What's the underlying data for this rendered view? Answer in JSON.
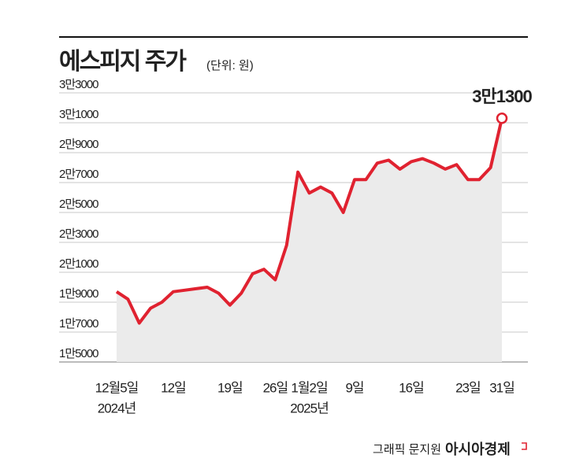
{
  "chart_data": {
    "type": "line",
    "title": "에스피지 주가",
    "subtitle": "(단위: 원)",
    "credit": "그래픽 문지원",
    "source": "아시아경제",
    "categories": [
      "12월5일",
      null,
      null,
      null,
      null,
      "12일",
      null,
      null,
      null,
      null,
      "19일",
      null,
      null,
      null,
      "26일",
      null,
      null,
      "1월2일",
      null,
      null,
      null,
      "9일",
      null,
      null,
      null,
      null,
      "16일",
      null,
      null,
      null,
      null,
      "23일",
      null,
      null,
      "31일"
    ],
    "year_labels": [
      "2024년",
      null,
      null,
      null,
      null,
      null,
      null,
      null,
      null,
      null,
      null,
      null,
      null,
      null,
      null,
      null,
      null,
      "2025년",
      null,
      null,
      null,
      null,
      null,
      null,
      null,
      null,
      null,
      null,
      null,
      null,
      null,
      null,
      null,
      null,
      null
    ],
    "series": [
      {
        "color": "#e02230",
        "fill": "#ebebeb",
        "values": [
          19700,
          19200,
          17600,
          18600,
          19000,
          19700,
          19800,
          19900,
          20000,
          19600,
          18800,
          19600,
          20900,
          21200,
          20500,
          22800,
          27700,
          26300,
          26700,
          26300,
          25000,
          27200,
          27200,
          28300,
          28500,
          27900,
          28400,
          28600,
          28300,
          27900,
          28200,
          27200,
          27200,
          28000,
          31300
        ],
        "value_labels": [
          null,
          null,
          null,
          null,
          null,
          null,
          null,
          null,
          null,
          null,
          null,
          null,
          null,
          null,
          null,
          null,
          null,
          null,
          null,
          null,
          null,
          null,
          null,
          null,
          null,
          null,
          null,
          null,
          null,
          null,
          null,
          null,
          null,
          null,
          "3만1300"
        ]
      }
    ],
    "ylim": [
      15000,
      33000
    ],
    "yticks": [
      {
        "value": 15000,
        "label": "1만5000"
      },
      {
        "value": 17000,
        "label": "1만7000"
      },
      {
        "value": 19000,
        "label": "1만9000"
      },
      {
        "value": 21000,
        "label": "2만1000"
      },
      {
        "value": 23000,
        "label": "2만3000"
      },
      {
        "value": 25000,
        "label": "2만5000"
      },
      {
        "value": 27000,
        "label": "2만7000"
      },
      {
        "value": 29000,
        "label": "2만9000"
      },
      {
        "value": 31000,
        "label": "3만1000"
      },
      {
        "value": 33000,
        "label": "3만3000"
      }
    ],
    "grid": true
  }
}
